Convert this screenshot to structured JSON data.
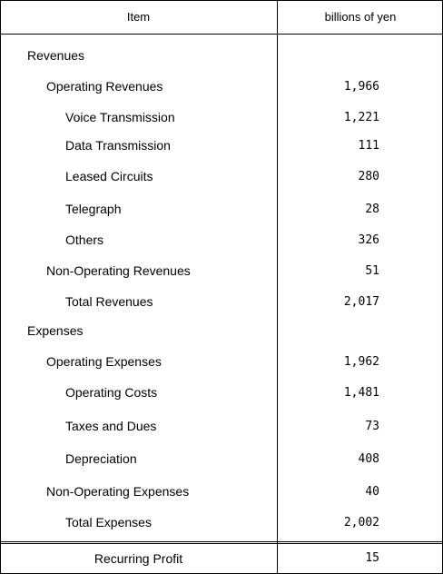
{
  "header": {
    "item": "Item",
    "unit": "billions of yen"
  },
  "rows": [
    {
      "label": "Revenues",
      "value": ""
    },
    {
      "label": "Operating Revenues",
      "value": "1,966"
    },
    {
      "label": "Voice Transmission",
      "value": "1,221"
    },
    {
      "label": "Data Transmission",
      "value": "111"
    },
    {
      "label": "Leased Circuits",
      "value": "280"
    },
    {
      "label": "Telegraph",
      "value": "28"
    },
    {
      "label": "Others",
      "value": "326"
    },
    {
      "label": "Non-Operating Revenues",
      "value": "51"
    },
    {
      "label": "Total Revenues",
      "value": "2,017"
    },
    {
      "label": "Expenses",
      "value": ""
    },
    {
      "label": "Operating Expenses",
      "value": "1,962"
    },
    {
      "label": "Operating Costs",
      "value": "1,481"
    },
    {
      "label": "Taxes and Dues",
      "value": "73"
    },
    {
      "label": "Depreciation",
      "value": "408"
    },
    {
      "label": "Non-Operating Expenses",
      "value": "40"
    },
    {
      "label": "Total Expenses",
      "value": "2,002"
    }
  ],
  "footer": {
    "label": "Recurring Profit",
    "value": "15"
  }
}
